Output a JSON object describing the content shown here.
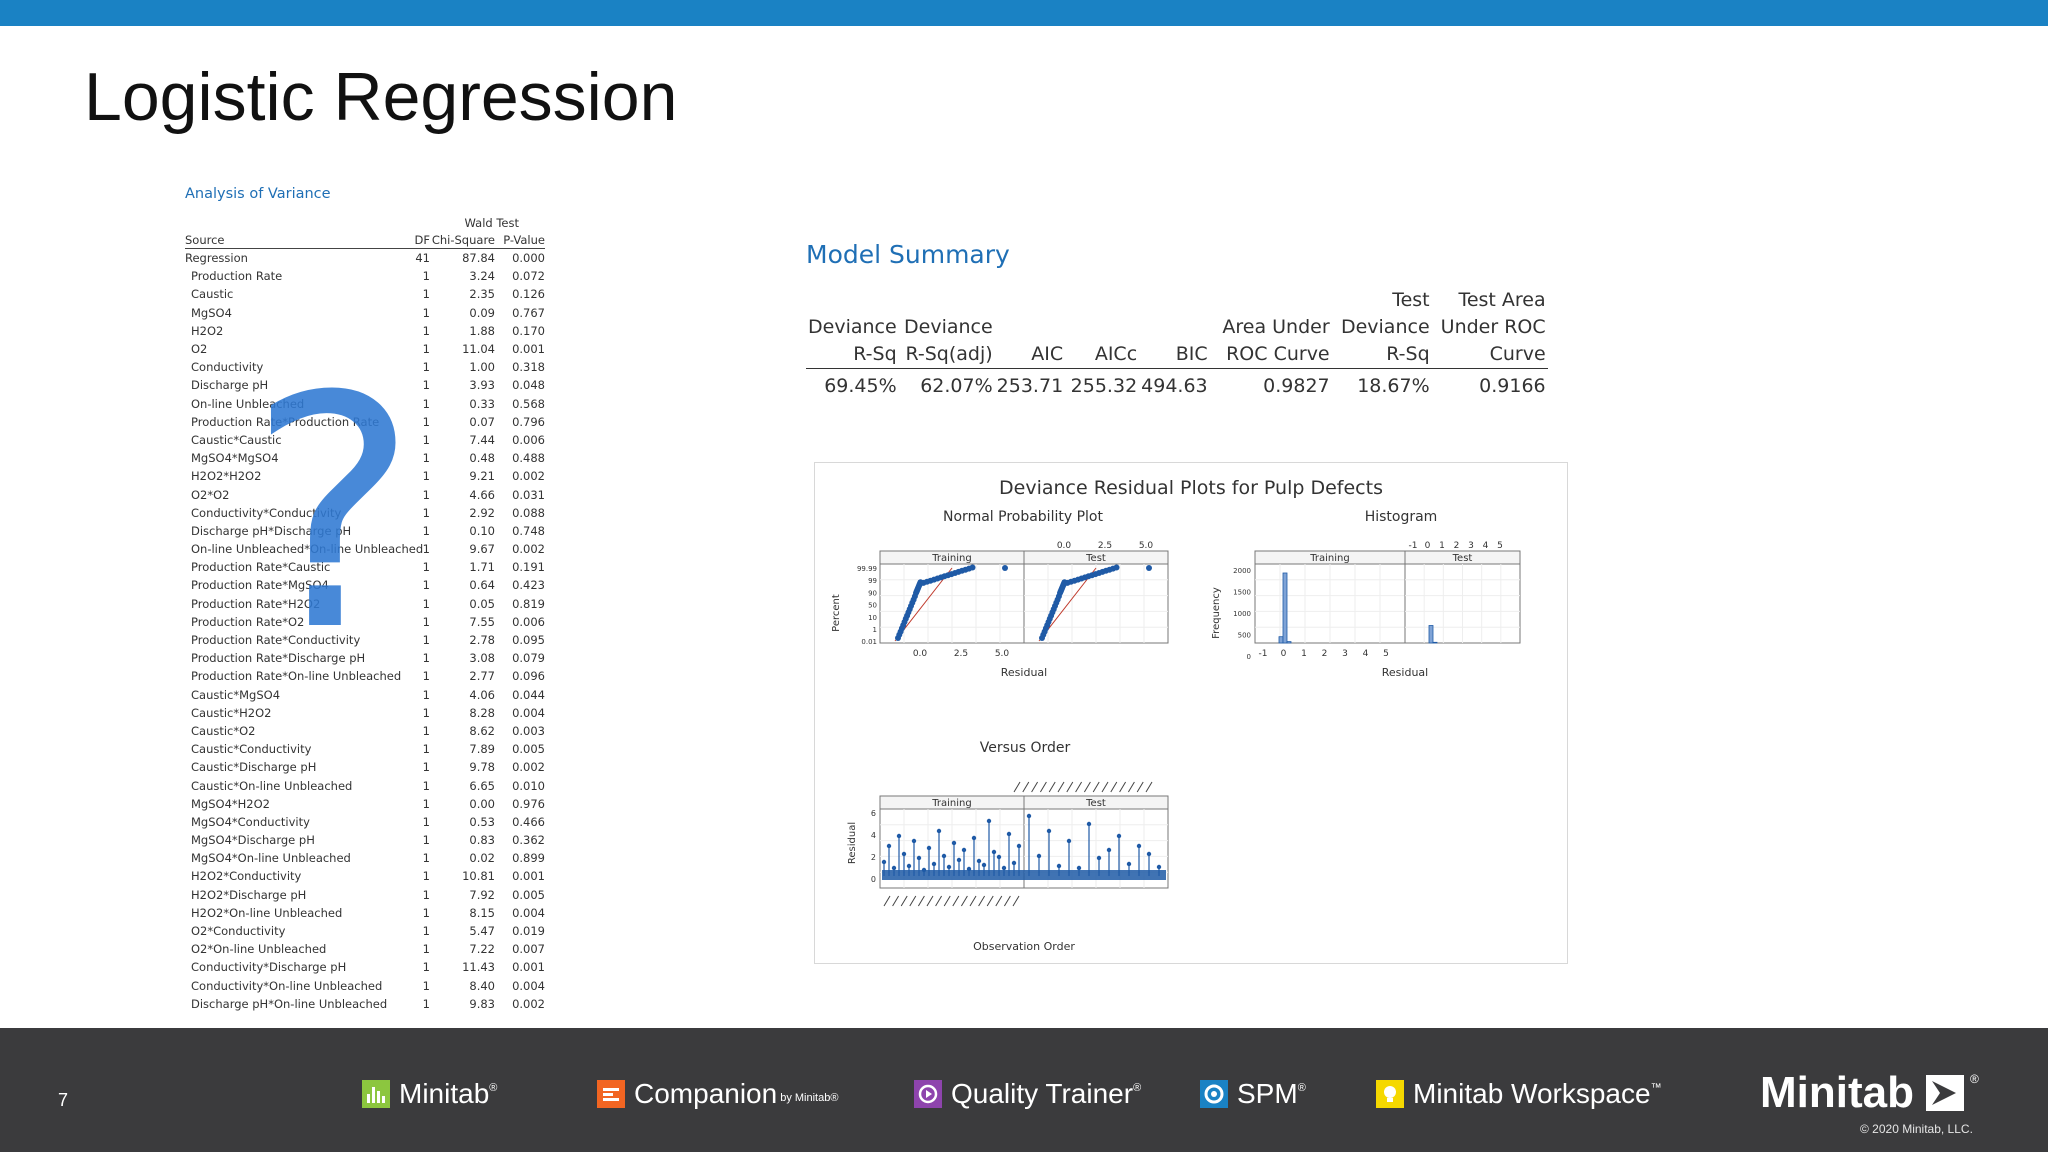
{
  "slide": {
    "title": "Logistic Regression",
    "page_number": "7"
  },
  "anova": {
    "heading": "Analysis of Variance",
    "group_header": "Wald Test",
    "columns": [
      "Source",
      "DF",
      "Chi-Square",
      "P-Value"
    ],
    "rows": [
      [
        "Regression",
        "41",
        "87.84",
        "0.000"
      ],
      [
        "Production Rate",
        "1",
        "3.24",
        "0.072"
      ],
      [
        "Caustic",
        "1",
        "2.35",
        "0.126"
      ],
      [
        "MgSO4",
        "1",
        "0.09",
        "0.767"
      ],
      [
        "H2O2",
        "1",
        "1.88",
        "0.170"
      ],
      [
        "O2",
        "1",
        "11.04",
        "0.001"
      ],
      [
        "Conductivity",
        "1",
        "1.00",
        "0.318"
      ],
      [
        "Discharge pH",
        "1",
        "3.93",
        "0.048"
      ],
      [
        "On-line Unbleached",
        "1",
        "0.33",
        "0.568"
      ],
      [
        "Production Rate*Production Rate",
        "1",
        "0.07",
        "0.796"
      ],
      [
        "Caustic*Caustic",
        "1",
        "7.44",
        "0.006"
      ],
      [
        "MgSO4*MgSO4",
        "1",
        "0.48",
        "0.488"
      ],
      [
        "H2O2*H2O2",
        "1",
        "9.21",
        "0.002"
      ],
      [
        "O2*O2",
        "1",
        "4.66",
        "0.031"
      ],
      [
        "Conductivity*Conductivity",
        "1",
        "2.92",
        "0.088"
      ],
      [
        "Discharge pH*Discharge pH",
        "1",
        "0.10",
        "0.748"
      ],
      [
        "On-line Unbleached*On-line Unbleached",
        "1",
        "9.67",
        "0.002"
      ],
      [
        "Production Rate*Caustic",
        "1",
        "1.71",
        "0.191"
      ],
      [
        "Production Rate*MgSO4",
        "1",
        "0.64",
        "0.423"
      ],
      [
        "Production Rate*H2O2",
        "1",
        "0.05",
        "0.819"
      ],
      [
        "Production Rate*O2",
        "1",
        "7.55",
        "0.006"
      ],
      [
        "Production Rate*Conductivity",
        "1",
        "2.78",
        "0.095"
      ],
      [
        "Production Rate*Discharge pH",
        "1",
        "3.08",
        "0.079"
      ],
      [
        "Production Rate*On-line Unbleached",
        "1",
        "2.77",
        "0.096"
      ],
      [
        "Caustic*MgSO4",
        "1",
        "4.06",
        "0.044"
      ],
      [
        "Caustic*H2O2",
        "1",
        "8.28",
        "0.004"
      ],
      [
        "Caustic*O2",
        "1",
        "8.62",
        "0.003"
      ],
      [
        "Caustic*Conductivity",
        "1",
        "7.89",
        "0.005"
      ],
      [
        "Caustic*Discharge pH",
        "1",
        "9.78",
        "0.002"
      ],
      [
        "Caustic*On-line Unbleached",
        "1",
        "6.65",
        "0.010"
      ],
      [
        "MgSO4*H2O2",
        "1",
        "0.00",
        "0.976"
      ],
      [
        "MgSO4*Conductivity",
        "1",
        "0.53",
        "0.466"
      ],
      [
        "MgSO4*Discharge pH",
        "1",
        "0.83",
        "0.362"
      ],
      [
        "MgSO4*On-line Unbleached",
        "1",
        "0.02",
        "0.899"
      ],
      [
        "H2O2*Conductivity",
        "1",
        "10.81",
        "0.001"
      ],
      [
        "H2O2*Discharge pH",
        "1",
        "7.92",
        "0.005"
      ],
      [
        "H2O2*On-line Unbleached",
        "1",
        "8.15",
        "0.004"
      ],
      [
        "O2*Conductivity",
        "1",
        "5.47",
        "0.019"
      ],
      [
        "O2*On-line Unbleached",
        "1",
        "7.22",
        "0.007"
      ],
      [
        "Conductivity*Discharge pH",
        "1",
        "11.43",
        "0.001"
      ],
      [
        "Conductivity*On-line Unbleached",
        "1",
        "8.40",
        "0.004"
      ],
      [
        "Discharge pH*On-line Unbleached",
        "1",
        "9.83",
        "0.002"
      ]
    ],
    "overlay_glyph": "?"
  },
  "model_summary": {
    "heading": "Model Summary",
    "headers": [
      [
        "Deviance",
        "R-Sq"
      ],
      [
        "Deviance",
        "R-Sq(adj)"
      ],
      [
        "AIC"
      ],
      [
        "AICc"
      ],
      [
        "BIC"
      ],
      [
        "Area Under",
        "ROC Curve"
      ],
      [
        "Test",
        "Deviance",
        "R-Sq"
      ],
      [
        "Test Area",
        "Under ROC",
        "Curve"
      ]
    ],
    "values": [
      "69.45%",
      "62.07%",
      "253.71",
      "255.32",
      "494.63",
      "0.9827",
      "18.67%",
      "0.9166"
    ]
  },
  "residual_plots": {
    "title": "Deviance Residual Plots for Pulp Defects",
    "normal_prob": {
      "title": "Normal Probability Plot",
      "panels": [
        "Training",
        "Test"
      ],
      "y_label": "Percent",
      "x_label": "Residual",
      "y_ticks": [
        "99.99",
        "99",
        "90",
        "50",
        "10",
        "1",
        "0.01"
      ],
      "x_ticks": [
        "0.0",
        "2.5",
        "5.0"
      ]
    },
    "histogram": {
      "title": "Histogram",
      "panels": [
        "Training",
        "Test"
      ],
      "y_label": "Frequency",
      "x_label": "Residual",
      "y_ticks": [
        "2000",
        "1500",
        "1000",
        "500",
        "0"
      ],
      "x_ticks": [
        "-1",
        "0",
        "1",
        "2",
        "3",
        "4",
        "5"
      ]
    },
    "versus_order": {
      "title": "Versus Order",
      "panels": [
        "Training",
        "Test"
      ],
      "y_label": "Residual",
      "x_label": "Observation Order",
      "y_ticks": [
        "6",
        "4",
        "2",
        "0"
      ]
    },
    "colors": {
      "points": "#1f5aa6",
      "fit_line": "#c0392b",
      "frame": "#555555"
    }
  },
  "footer": {
    "products": [
      {
        "name": "Minitab",
        "mark": "®",
        "icon": "minitab-bar-icon",
        "color": "#8cc63f"
      },
      {
        "name": "Companion",
        "by": "by Minitab®",
        "icon": "companion-icon",
        "color": "#f26522"
      },
      {
        "name": "Quality Trainer",
        "mark": "®",
        "icon": "quality-trainer-icon",
        "color": "#8e44ad"
      },
      {
        "name": "SPM",
        "mark": "®",
        "icon": "spm-icon",
        "color": "#1a82c4"
      },
      {
        "name": "Minitab Workspace",
        "mark": "™",
        "icon": "workspace-icon",
        "color": "#f5d800"
      }
    ],
    "brand": "Minitab",
    "brand_mark": "®",
    "copyright": "© 2020 Minitab, LLC."
  },
  "colors": {
    "top_bar": "#1a82c4",
    "heading_blue": "#1f6fb5",
    "footer_bg": "#3b3b3d"
  }
}
